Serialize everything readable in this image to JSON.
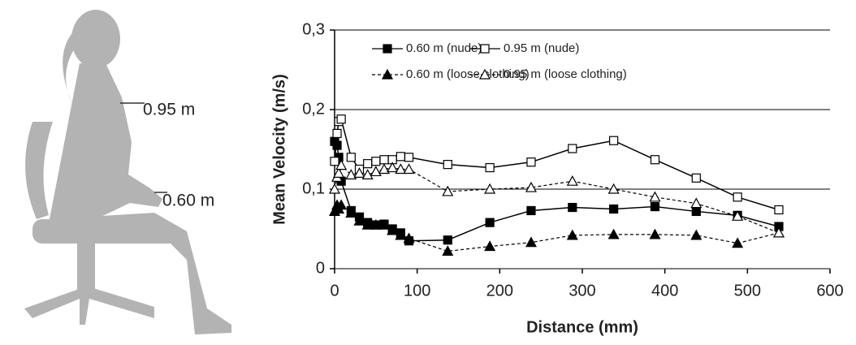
{
  "figure": {
    "labels": [
      "0.95 m",
      "0.60 m"
    ]
  },
  "chart_data": {
    "type": "line",
    "x_label": "Distance (mm)",
    "y_label": "Mean Velocity (m/s)",
    "x": [
      0,
      3,
      5,
      8,
      20,
      30,
      40,
      50,
      60,
      70,
      80,
      90,
      137,
      188,
      238,
      288,
      338,
      388,
      438,
      488,
      538
    ],
    "series": [
      {
        "name": "0.60 m (nude)",
        "color": "#000000",
        "marker": "square",
        "filled": true,
        "dashed": false,
        "values": [
          0.16,
          0.155,
          0.14,
          0.11,
          0.073,
          0.065,
          0.058,
          0.055,
          0.056,
          0.05,
          0.045,
          0.035,
          0.036,
          0.058,
          0.073,
          0.077,
          0.075,
          0.078,
          0.072,
          0.067,
          0.053
        ]
      },
      {
        "name": "0.95 m (nude)",
        "color": "#000000",
        "marker": "square",
        "filled": false,
        "dashed": false,
        "values": [
          0.135,
          0.17,
          0.185,
          0.188,
          0.14,
          0.125,
          0.132,
          0.135,
          0.137,
          0.137,
          0.141,
          0.14,
          0.131,
          0.127,
          0.134,
          0.151,
          0.161,
          0.137,
          0.114,
          0.09,
          0.074
        ]
      },
      {
        "name": "0.60 m (loose clothing)",
        "color": "#000000",
        "marker": "triangle",
        "filled": true,
        "dashed": true,
        "values": [
          0.072,
          0.08,
          0.075,
          0.08,
          0.07,
          0.06,
          0.055,
          0.055,
          0.055,
          0.048,
          0.042,
          0.038,
          0.022,
          0.028,
          0.033,
          0.042,
          0.043,
          0.043,
          0.042,
          0.032,
          0.045
        ]
      },
      {
        "name": "0.95 m (loose clothing)",
        "color": "#000000",
        "marker": "triangle",
        "filled": false,
        "dashed": true,
        "values": [
          0.1,
          0.115,
          0.12,
          0.13,
          0.118,
          0.12,
          0.118,
          0.122,
          0.125,
          0.127,
          0.125,
          0.125,
          0.097,
          0.1,
          0.102,
          0.11,
          0.1,
          0.09,
          0.082,
          0.066,
          0.045
        ]
      }
    ],
    "xlim": [
      0,
      600
    ],
    "xticks": [
      0,
      100,
      200,
      300,
      400,
      500,
      600
    ],
    "ylim": [
      0,
      0.3
    ],
    "yticks": [
      0,
      {
        "value": 0.1,
        "label": "0,1"
      },
      {
        "value": 0.2,
        "label": "0,2"
      },
      {
        "value": 0.3,
        "label": "0,3"
      }
    ],
    "grid": true
  }
}
